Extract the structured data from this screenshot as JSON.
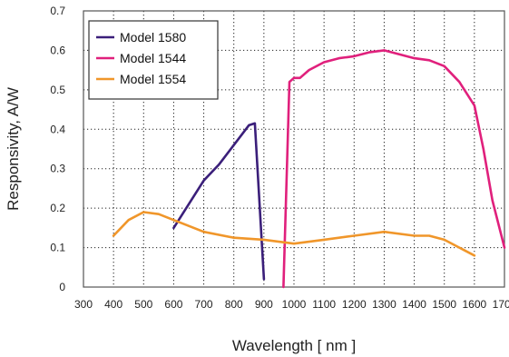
{
  "chart_data": {
    "type": "line",
    "title": "",
    "xlabel": "Wavelength [ nm ]",
    "ylabel": "Responsivity, A/W",
    "xlim": [
      300,
      1700
    ],
    "ylim": [
      0,
      0.7
    ],
    "x_ticks": [
      300,
      400,
      500,
      600,
      700,
      800,
      900,
      1000,
      1100,
      1200,
      1300,
      1400,
      1500,
      1600,
      1700
    ],
    "y_ticks": [
      0,
      0.1,
      0.2,
      0.3,
      0.4,
      0.5,
      0.6,
      0.7
    ],
    "y_tick_labels": [
      "0",
      "0.1",
      "0.2",
      "0.3",
      "0.4",
      "0.5",
      "0.6",
      "0.7"
    ],
    "grid": true,
    "legend_position": "top-left",
    "series": [
      {
        "name": "Model 1580",
        "color": "#3b1f7a",
        "points": [
          [
            600,
            0.15
          ],
          [
            650,
            0.21
          ],
          [
            700,
            0.27
          ],
          [
            750,
            0.31
          ],
          [
            800,
            0.36
          ],
          [
            850,
            0.41
          ],
          [
            870,
            0.415
          ],
          [
            900,
            0.02
          ]
        ]
      },
      {
        "name": "Model 1544",
        "color": "#e0207c",
        "points": [
          [
            965,
            0.0
          ],
          [
            985,
            0.52
          ],
          [
            1000,
            0.53
          ],
          [
            1020,
            0.53
          ],
          [
            1050,
            0.55
          ],
          [
            1100,
            0.57
          ],
          [
            1150,
            0.58
          ],
          [
            1200,
            0.585
          ],
          [
            1250,
            0.595
          ],
          [
            1300,
            0.6
          ],
          [
            1350,
            0.59
          ],
          [
            1400,
            0.58
          ],
          [
            1450,
            0.575
          ],
          [
            1500,
            0.56
          ],
          [
            1550,
            0.52
          ],
          [
            1600,
            0.46
          ],
          [
            1630,
            0.35
          ],
          [
            1660,
            0.22
          ],
          [
            1700,
            0.1
          ]
        ]
      },
      {
        "name": "Model 1554",
        "color": "#f0962a",
        "points": [
          [
            400,
            0.13
          ],
          [
            450,
            0.17
          ],
          [
            500,
            0.19
          ],
          [
            550,
            0.185
          ],
          [
            600,
            0.17
          ],
          [
            650,
            0.155
          ],
          [
            700,
            0.14
          ],
          [
            800,
            0.125
          ],
          [
            900,
            0.12
          ],
          [
            1000,
            0.11
          ],
          [
            1100,
            0.12
          ],
          [
            1200,
            0.13
          ],
          [
            1300,
            0.14
          ],
          [
            1400,
            0.13
          ],
          [
            1450,
            0.13
          ],
          [
            1500,
            0.12
          ],
          [
            1550,
            0.1
          ],
          [
            1600,
            0.08
          ]
        ]
      }
    ]
  }
}
